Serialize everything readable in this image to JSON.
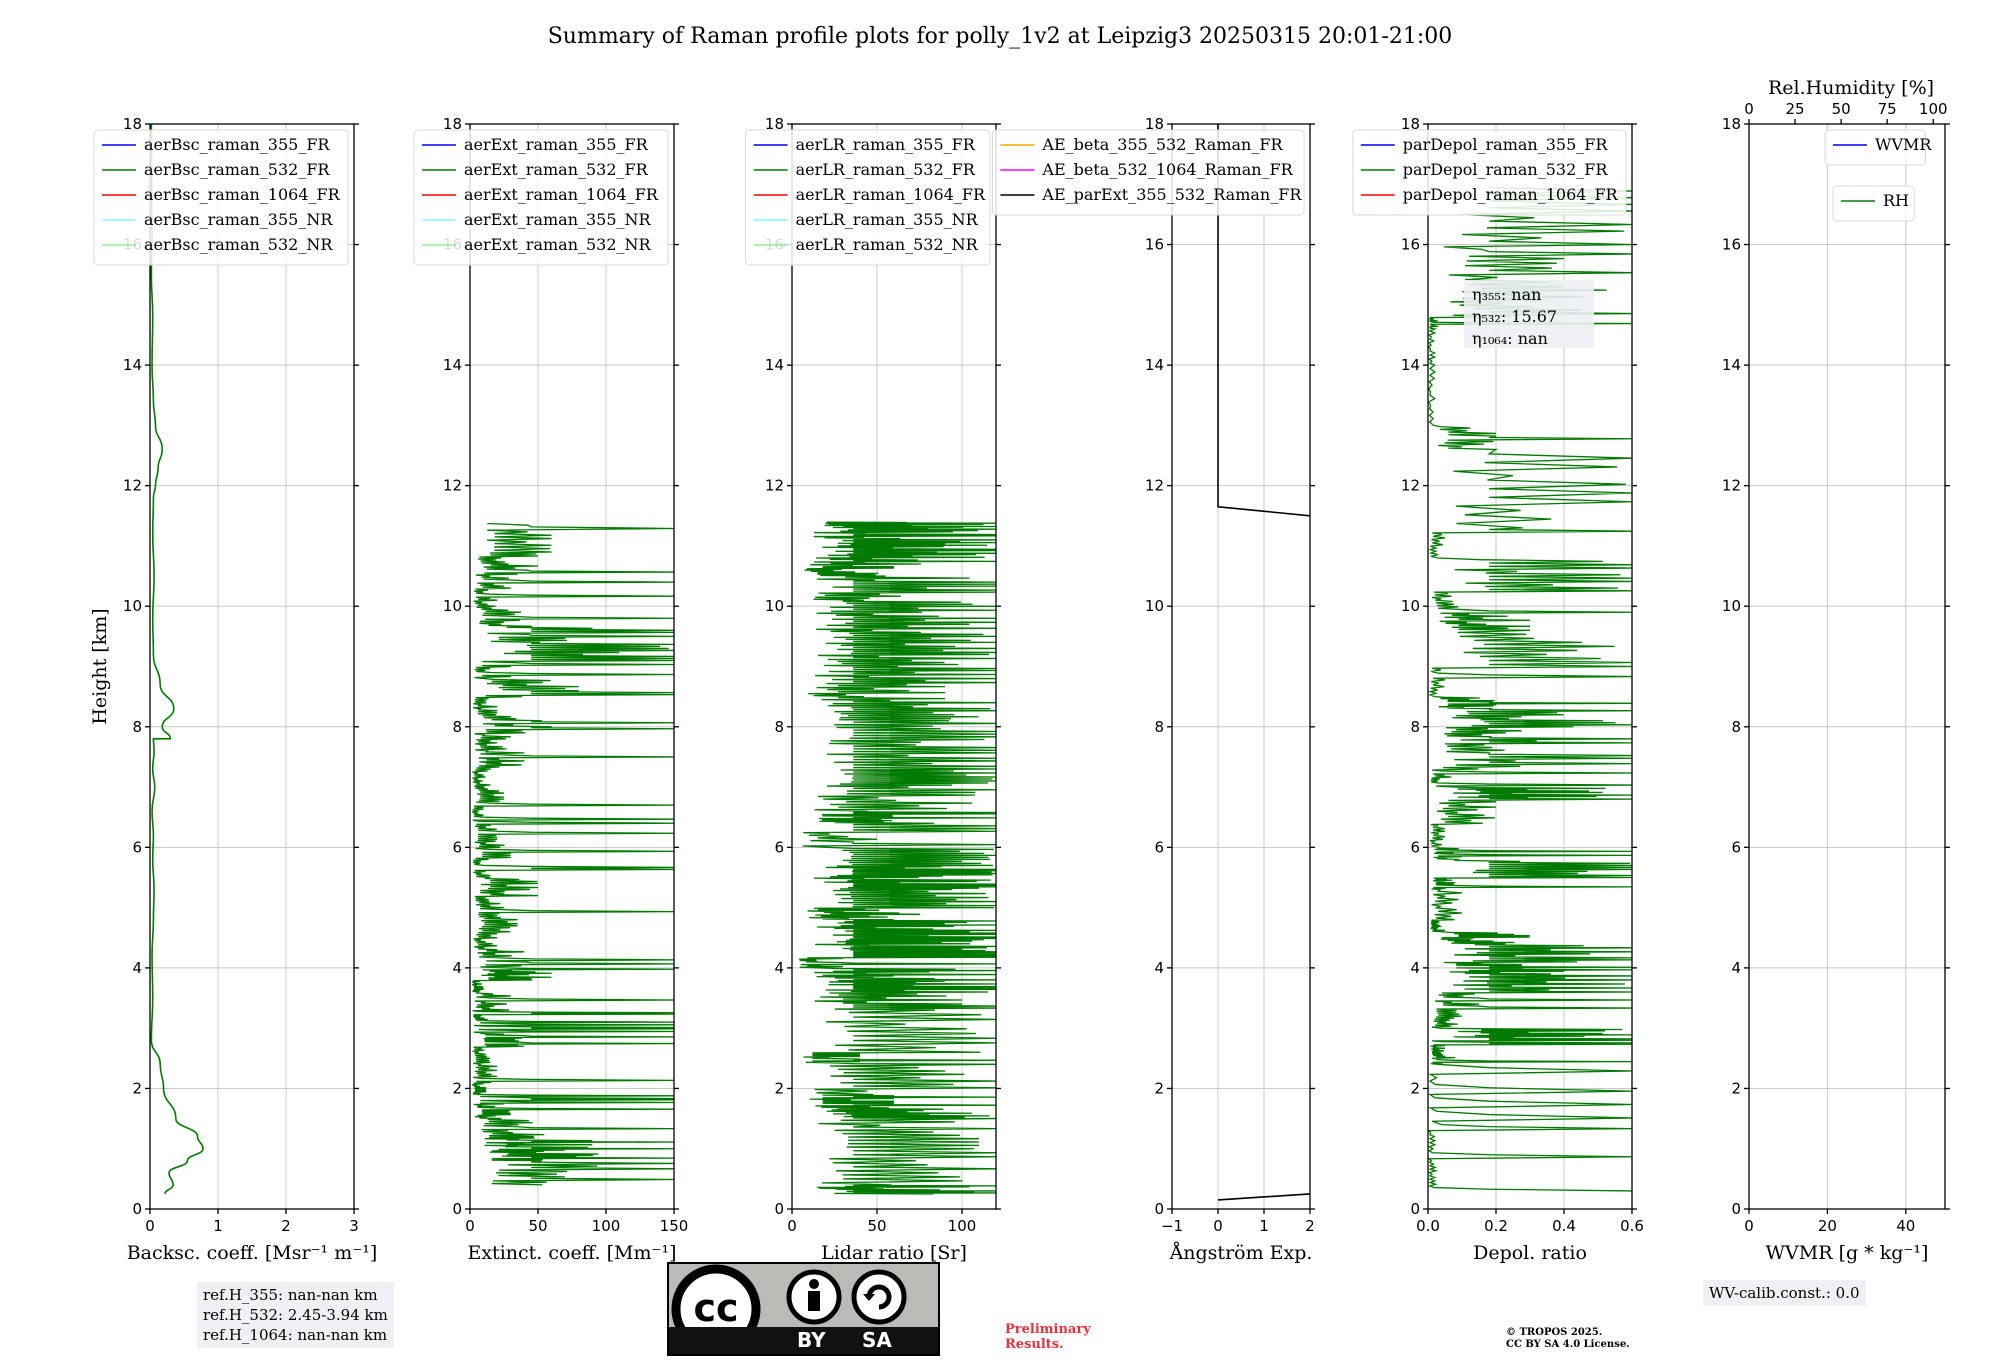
{
  "figure": {
    "title": "Summary of Raman profile plots for polly_1v2 at Leipzig3 20250315 20:01-21:00"
  },
  "colors": {
    "line_main": "#007a00",
    "grid": "#c8c8c8",
    "legend_box": "#d8d8d8"
  },
  "chart_data": [
    {
      "type": "line",
      "title": "",
      "xlabel": "Backsc. coeff. [Msr⁻¹ m⁻¹]",
      "ylabel": "Height [km]",
      "xlim": [
        0,
        3
      ],
      "ylim": [
        0,
        18
      ],
      "xticks": [
        "0",
        "1",
        "2",
        "3"
      ],
      "yticks": [
        "0",
        "2",
        "4",
        "6",
        "8",
        "10",
        "12",
        "14",
        "16",
        "18"
      ],
      "legend_loc": "upper-right",
      "legend": [
        {
          "name": "aerBsc_raman_355_FR",
          "color": "#0000ff"
        },
        {
          "name": "aerBsc_raman_532_FR",
          "color": "#008000"
        },
        {
          "name": "aerBsc_raman_1064_FR",
          "color": "#ff0000"
        },
        {
          "name": "aerBsc_raman_355_NR",
          "color": "#7fffff"
        },
        {
          "name": "aerBsc_raman_532_NR",
          "color": "#90ee90"
        }
      ],
      "series": [
        {
          "name": "aerBsc_raman_532_FR",
          "style": "smooth",
          "x": [
            0.22,
            0.34,
            0.28,
            0.55,
            0.78,
            0.7,
            0.38,
            0.2,
            0.15,
            0.02,
            0.04,
            0.03,
            0.05,
            0.06,
            0.04,
            0.05,
            0.03,
            0.07,
            0.04,
            0.06,
            0.05,
            0.3,
            0.18,
            0.35,
            0.15,
            0.05,
            0.04,
            0.06,
            0.04,
            0.05,
            0.08,
            0.12,
            0.18,
            0.08,
            0.05,
            0.03,
            0.04,
            0.02,
            0.03,
            0.02
          ],
          "y": [
            0.25,
            0.4,
            0.6,
            0.8,
            1.0,
            1.2,
            1.5,
            2.0,
            2.4,
            2.8,
            3.5,
            4.2,
            4.8,
            5.3,
            5.8,
            6.2,
            6.6,
            7.0,
            7.3,
            7.6,
            7.8,
            7.8,
            8.0,
            8.3,
            8.7,
            9.2,
            9.8,
            10.5,
            11.2,
            11.8,
            12.0,
            12.3,
            12.6,
            13.0,
            13.4,
            14.0,
            14.8,
            15.5,
            16.2,
            18.0
          ]
        }
      ]
    },
    {
      "type": "line",
      "xlabel": "Extinct. coeff. [Mm⁻¹]",
      "xlim": [
        0,
        150
      ],
      "ylim": [
        0,
        18
      ],
      "xticks": [
        "0",
        "50",
        "100",
        "150"
      ],
      "yticks": [
        "0",
        "2",
        "4",
        "6",
        "8",
        "10",
        "12",
        "14",
        "16",
        "18"
      ],
      "legend_loc": "upper-right",
      "legend": [
        {
          "name": "aerExt_raman_355_FR",
          "color": "#0000ff"
        },
        {
          "name": "aerExt_raman_532_FR",
          "color": "#008000"
        },
        {
          "name": "aerExt_raman_1064_FR",
          "color": "#ff0000"
        },
        {
          "name": "aerExt_raman_355_NR",
          "color": "#7fffff"
        },
        {
          "name": "aerExt_raman_532_NR",
          "color": "#90ee90"
        }
      ],
      "series": [
        {
          "name": "aerExt_raman_532_FR",
          "style": "noisy",
          "ymin": 0.4,
          "ymax": 11.4,
          "xmax": 150,
          "x": [
            150,
            110,
            90,
            55,
            30,
            25,
            12,
            20,
            15,
            40,
            25,
            15,
            30,
            10,
            60,
            40,
            20,
            35,
            25,
            50,
            15,
            30,
            20,
            10,
            25,
            15,
            40,
            30,
            60,
            20,
            80,
            30,
            150,
            90,
            40,
            20,
            35,
            50,
            60,
            30
          ],
          "y": [
            0.4,
            0.8,
            1.0,
            1.2,
            1.5,
            1.7,
            1.9,
            2.1,
            2.4,
            2.7,
            2.9,
            3.1,
            3.3,
            3.6,
            3.8,
            4.0,
            4.3,
            4.6,
            4.9,
            5.2,
            5.5,
            5.8,
            6.1,
            6.4,
            6.7,
            7.0,
            7.3,
            7.6,
            7.9,
            8.2,
            8.5,
            8.8,
            9.1,
            9.4,
            9.7,
            10.0,
            10.3,
            10.6,
            10.9,
            11.4
          ]
        }
      ]
    },
    {
      "type": "line",
      "xlabel": "Lidar ratio [Sr]",
      "xlim": [
        0,
        120
      ],
      "ylim": [
        0,
        18
      ],
      "xticks": [
        "0",
        "50",
        "100"
      ],
      "yticks": [
        "0",
        "2",
        "4",
        "6",
        "8",
        "10",
        "12",
        "14",
        "16",
        "18"
      ],
      "legend_loc": "upper-right",
      "legend": [
        {
          "name": "aerLR_raman_355_FR",
          "color": "#0000ff"
        },
        {
          "name": "aerLR_raman_532_FR",
          "color": "#008000"
        },
        {
          "name": "aerLR_raman_1064_FR",
          "color": "#ff0000"
        },
        {
          "name": "aerLR_raman_355_NR",
          "color": "#7fffff"
        },
        {
          "name": "aerLR_raman_532_NR",
          "color": "#90ee90"
        }
      ],
      "series": [
        {
          "name": "aerLR_raman_532_FR",
          "style": "noisy",
          "ymin": 0.25,
          "ymax": 11.4,
          "xmax": 120,
          "x": [
            120,
            120,
            110,
            120,
            60,
            120,
            40,
            120,
            100,
            120,
            120,
            30,
            120,
            120,
            120,
            80,
            120,
            120,
            120,
            120,
            50,
            120,
            120,
            120,
            120,
            120,
            120,
            90,
            120,
            120,
            120,
            120,
            120,
            120,
            60,
            120,
            120,
            120,
            120,
            120
          ],
          "y": [
            0.25,
            0.4,
            1.0,
            1.5,
            1.7,
            1.9,
            2.4,
            2.6,
            3.3,
            3.6,
            3.8,
            4.0,
            4.2,
            4.4,
            4.6,
            4.8,
            5.0,
            5.3,
            5.5,
            5.7,
            6.0,
            6.4,
            6.6,
            7.0,
            7.3,
            7.7,
            8.1,
            8.4,
            8.7,
            9.0,
            9.3,
            9.6,
            9.9,
            10.2,
            10.5,
            10.7,
            10.9,
            11.1,
            11.3,
            11.4
          ]
        }
      ]
    },
    {
      "type": "line",
      "xlabel": "Ångström Exp.",
      "xlim": [
        -1,
        2
      ],
      "ylim": [
        0,
        18
      ],
      "xticks": [
        "−1",
        "0",
        "1",
        "2"
      ],
      "yticks": [
        "0",
        "2",
        "4",
        "6",
        "8",
        "10",
        "12",
        "14",
        "16",
        "18"
      ],
      "legend_loc": "upper-right",
      "legend": [
        {
          "name": "AE_beta_355_532_Raman_FR",
          "color": "#ffa500"
        },
        {
          "name": "AE_beta_532_1064_Raman_FR",
          "color": "#ff00ff"
        },
        {
          "name": "AE_parExt_355_532_Raman_FR",
          "color": "#000000"
        }
      ],
      "series": [
        {
          "name": "AE_parExt_355_532_Raman_FR",
          "style": "segments",
          "color": "#000000",
          "segments": [
            {
              "x": [
                0,
                2
              ],
              "y": [
                0.15,
                0.25
              ]
            },
            {
              "x": [
                0,
                0,
                2
              ],
              "y": [
                18,
                11.65,
                11.5
              ]
            }
          ]
        }
      ]
    },
    {
      "type": "line",
      "xlabel": "Depol. ratio",
      "xlim": [
        0,
        0.6
      ],
      "ylim": [
        0,
        18
      ],
      "xticks": [
        "0.0",
        "0.2",
        "0.4",
        "0.6"
      ],
      "yticks": [
        "0",
        "2",
        "4",
        "6",
        "8",
        "10",
        "12",
        "14",
        "16",
        "18"
      ],
      "legend_loc": "upper-right",
      "legend": [
        {
          "name": "parDepol_raman_355_FR",
          "color": "#0000ff"
        },
        {
          "name": "parDepol_raman_532_FR",
          "color": "#008000"
        },
        {
          "name": "parDepol_raman_1064_FR",
          "color": "#ff0000"
        }
      ],
      "annotation": [
        "η₃₅₅: nan",
        "η₅₃₂: 15.67",
        "η₁₀₆₄: nan"
      ],
      "series": [
        {
          "name": "parDepol_raman_532_FR",
          "style": "noisy",
          "ymin": 0.0,
          "ymax": 17.2,
          "xmax": 0.6,
          "x": [
            0.03,
            0.02,
            0.04,
            0.08,
            0.05,
            0.6,
            0.1,
            0.15,
            0.6,
            0.4,
            0.6,
            0.3,
            0.05,
            0.1,
            0.08,
            0.6,
            0.1,
            0.05,
            0.2,
            0.6,
            0.08,
            0.28,
            0.32,
            0.6,
            0.2,
            0.05,
            0.6,
            0.3,
            0.1,
            0.6,
            0.05,
            0.6,
            0.2,
            0.02,
            0.02,
            0.03,
            0.6,
            0.4,
            0.6,
            0.2
          ],
          "y": [
            0.3,
            0.8,
            1.4,
            2.4,
            2.6,
            2.8,
            3.0,
            3.3,
            3.6,
            3.9,
            4.1,
            4.4,
            4.6,
            4.8,
            5.3,
            5.5,
            5.8,
            6.0,
            6.4,
            6.8,
            7.0,
            7.3,
            7.7,
            8.0,
            8.3,
            8.5,
            9.0,
            9.6,
            9.9,
            10.3,
            10.8,
            11.3,
            12.6,
            13.0,
            14.0,
            14.6,
            14.8,
            15.3,
            16.0,
            17.0
          ]
        }
      ]
    },
    {
      "type": "line",
      "xlabel": "WVMR [g * kg⁻¹]",
      "x2label": "Rel.Humidity [%]",
      "xlim": [
        0,
        50
      ],
      "ylim": [
        0,
        18
      ],
      "xticks": [
        "0",
        "20",
        "40"
      ],
      "x2ticks": [
        "0",
        "25",
        "50",
        "75",
        "100"
      ],
      "yticks": [
        "0",
        "2",
        "4",
        "6",
        "8",
        "10",
        "12",
        "14",
        "16",
        "18"
      ],
      "legend": [
        {
          "name": "WVMR",
          "color": "#0000ff"
        }
      ],
      "legend2": [
        {
          "name": "RH",
          "color": "#008000"
        }
      ],
      "series": []
    }
  ],
  "info_boxes": {
    "ref_heights": [
      "ref.H_355: nan-nan km",
      "ref.H_532: 2.45-3.94 km",
      "ref.H_1064: nan-nan km"
    ],
    "wv_calib": "WV-calib.const.: 0.0"
  },
  "license": {
    "by": "BY",
    "sa": "SA",
    "cc": "cc"
  },
  "preliminary": [
    "Preliminary",
    "Results."
  ],
  "copyright": [
    "© TROPOS 2025.",
    "CC BY SA 4.0 License."
  ]
}
